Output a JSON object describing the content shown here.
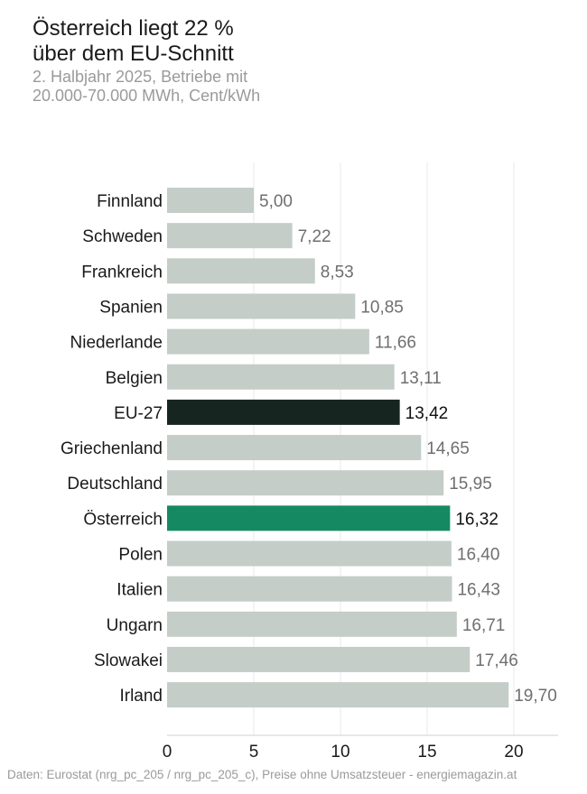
{
  "chart_data": {
    "type": "bar",
    "orientation": "horizontal",
    "title": [
      "Österreich liegt 22 %",
      "über dem EU-Schnitt"
    ],
    "subtitle": [
      "2. Halbjahr 2025, Betriebe mit",
      "20.000-70.000 MWh, Cent/kWh"
    ],
    "categories": [
      "Finnland",
      "Schweden",
      "Frankreich",
      "Spanien",
      "Niederlande",
      "Belgien",
      "EU-27",
      "Griechenland",
      "Deutschland",
      "Österreich",
      "Polen",
      "Italien",
      "Ungarn",
      "Slowakei",
      "Irland"
    ],
    "values": [
      5.0,
      7.22,
      8.53,
      10.85,
      11.66,
      13.11,
      13.42,
      14.65,
      15.95,
      16.32,
      16.4,
      16.43,
      16.71,
      17.46,
      19.7
    ],
    "value_labels": [
      "5,00",
      "7,22",
      "8,53",
      "10,85",
      "11,66",
      "13,11",
      "13,42",
      "14,65",
      "15,95",
      "16,32",
      "16,40",
      "16,43",
      "16,71",
      "17,46",
      "19,70"
    ],
    "highlight": {
      "EU-27": "#172520",
      "Österreich": "#158a62"
    },
    "default_color": "#c4cdc8",
    "xlim": [
      0,
      22.5
    ],
    "xticks": [
      0,
      5,
      10,
      15,
      20
    ],
    "grid": true
  },
  "footer": "Daten: Eurostat (nrg_pc_205 / nrg_pc_205_c), Preise ohne Umsatzsteuer - energiemagazin.at"
}
